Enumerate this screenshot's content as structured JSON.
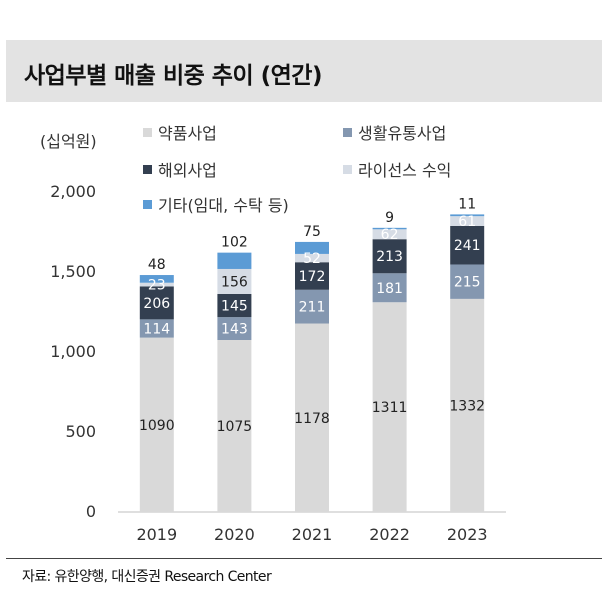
{
  "header": {
    "title": "사업부별 매출 비중 추이 (연간)"
  },
  "footer": {
    "source": "자료: 유한양행, 대신증권 Research Center"
  },
  "chart_data": {
    "type": "bar",
    "stacked": true,
    "title": "사업부별 매출 비중 추이 (연간)",
    "unit_label": "(십억원)",
    "categories": [
      "2019",
      "2020",
      "2021",
      "2022",
      "2023"
    ],
    "ylim": [
      0,
      2000
    ],
    "yticks": [
      0,
      500,
      1000,
      1500,
      2000
    ],
    "ytick_labels": [
      "0",
      "500",
      "1,000",
      "1,500",
      "2,000"
    ],
    "grid": false,
    "legend_position": "top-left",
    "series": [
      {
        "name": "약품사업",
        "color": "#d9d9d9",
        "label_color": "#222222",
        "values": [
          1090,
          1075,
          1178,
          1311,
          1332
        ]
      },
      {
        "name": "생활유통사업",
        "color": "#8497b0",
        "label_color": "#ffffff",
        "values": [
          114,
          143,
          211,
          181,
          215
        ]
      },
      {
        "name": "해외사업",
        "color": "#333f50",
        "label_color": "#ffffff",
        "values": [
          206,
          145,
          172,
          213,
          241
        ]
      },
      {
        "name": "라이선스 수익",
        "color": "#d6dce5",
        "label_color": "#222222",
        "values": [
          23,
          156,
          52,
          62,
          61
        ]
      },
      {
        "name": "기타(임대, 수탁 등)",
        "color": "#5b9bd5",
        "label_color": "#222222",
        "values": [
          48,
          102,
          75,
          9,
          11
        ]
      }
    ]
  }
}
